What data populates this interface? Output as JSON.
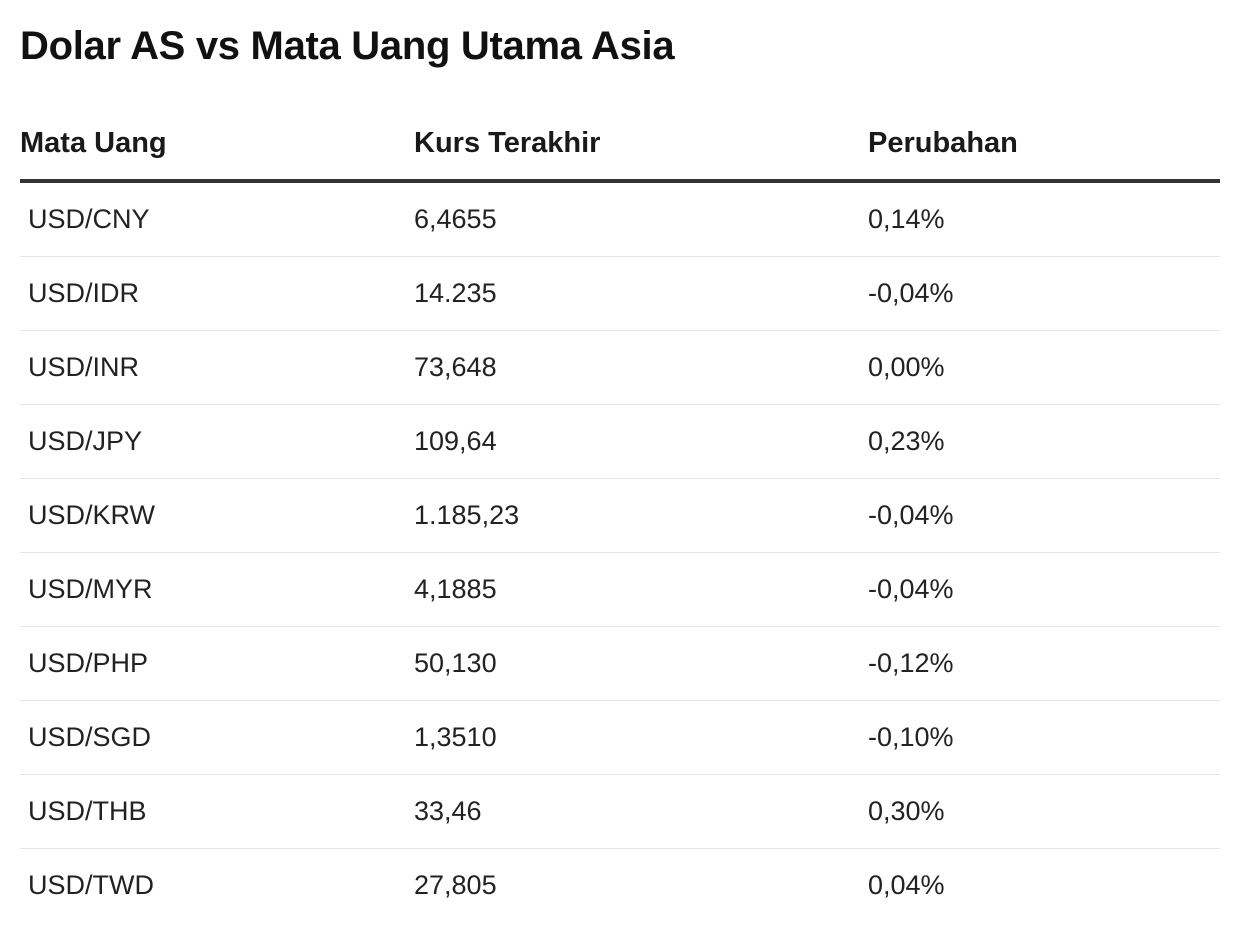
{
  "chart_data": {
    "type": "table",
    "title": "Dolar AS vs Mata Uang Utama Asia",
    "columns": [
      "Mata Uang",
      "Kurs Terakhir",
      "Perubahan"
    ],
    "rows": [
      {
        "pair": "USD/CNY",
        "rate": "6,4655",
        "change": "0,14%"
      },
      {
        "pair": "USD/IDR",
        "rate": "14.235",
        "change": "-0,04%"
      },
      {
        "pair": "USD/INR",
        "rate": "73,648",
        "change": "0,00%"
      },
      {
        "pair": "USD/JPY",
        "rate": "109,64",
        "change": "0,23%"
      },
      {
        "pair": "USD/KRW",
        "rate": "1.185,23",
        "change": "-0,04%"
      },
      {
        "pair": "USD/MYR",
        "rate": "4,1885",
        "change": "-0,04%"
      },
      {
        "pair": "USD/PHP",
        "rate": "50,130",
        "change": "-0,12%"
      },
      {
        "pair": "USD/SGD",
        "rate": "1,3510",
        "change": "-0,10%"
      },
      {
        "pair": "USD/THB",
        "rate": "33,46",
        "change": "0,30%"
      },
      {
        "pair": "USD/TWD",
        "rate": "27,805",
        "change": "0,04%"
      }
    ]
  }
}
